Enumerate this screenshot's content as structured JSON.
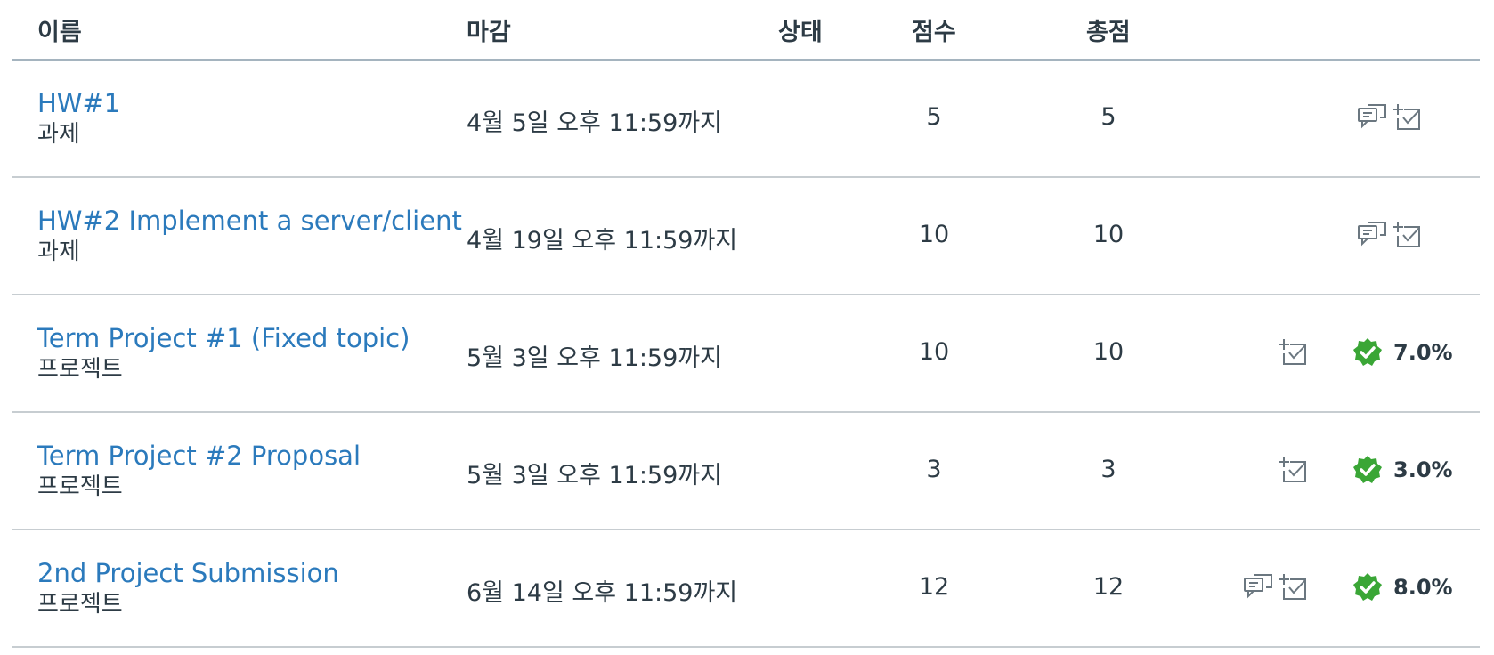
{
  "header": {
    "name": "이름",
    "due": "마감",
    "status": "상태",
    "score": "점수",
    "total": "총점"
  },
  "rows": [
    {
      "title": "HW#1",
      "type": "과제",
      "due": "4월 5일 오후 11:59까지",
      "score": "5",
      "total": "5",
      "icons": [
        "comment-icon",
        "rubric-icon"
      ],
      "weight": ""
    },
    {
      "title": "HW#2 Implement a server/client",
      "type": "과제",
      "due": "4월 19일 오후 11:59까지",
      "score": "10",
      "total": "10",
      "icons": [
        "comment-icon",
        "rubric-icon"
      ],
      "weight": ""
    },
    {
      "title": "Term Project #1 (Fixed topic)",
      "type": "프로젝트",
      "due": "5월 3일 오후 11:59까지",
      "score": "10",
      "total": "10",
      "icons": [
        "rubric-icon"
      ],
      "weight": "7.0%"
    },
    {
      "title": "Term Project #2 Proposal",
      "type": "프로젝트",
      "due": "5월 3일 오후 11:59까지",
      "score": "3",
      "total": "3",
      "icons": [
        "rubric-icon"
      ],
      "weight": "3.0%"
    },
    {
      "title": "2nd Project Submission",
      "type": "프로젝트",
      "due": "6월 14일 오후 11:59까지",
      "score": "12",
      "total": "12",
      "icons": [
        "comment-icon",
        "rubric-icon"
      ],
      "weight": "8.0%"
    }
  ],
  "colors": {
    "link": "#2b7abc",
    "text": "#2d3b45",
    "check_badge": "#3aa636",
    "icon": "#6b7780"
  }
}
